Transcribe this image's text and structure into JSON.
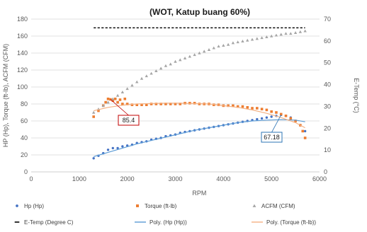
{
  "chart_data": {
    "type": "scatter",
    "title": "(WOT, Katup buang 60%)",
    "xlabel": "RPM",
    "ylabel": "HP (Hp), Torque (ft-lb), ACFM (CFM)",
    "y2label": "E-Temp (°C)",
    "xlim": [
      0,
      6000
    ],
    "ylim": [
      0,
      180
    ],
    "y2lim": [
      0,
      70
    ],
    "x_ticks": [
      0,
      1000,
      2000,
      3000,
      4000,
      5000,
      6000
    ],
    "y_ticks": [
      0,
      20,
      40,
      60,
      80,
      100,
      120,
      140,
      160,
      180
    ],
    "y2_ticks": [
      0,
      10,
      20,
      30,
      40,
      50,
      60,
      70
    ],
    "grid": "horizontal",
    "legend_position": "bottom",
    "colors": {
      "hp": "#4472C4",
      "torque": "#ED7D31",
      "acfm": "#A5A5A5",
      "etemp": "#000000",
      "poly_hp": "#5B9BD5",
      "poly_torque": "#F4B183",
      "ann_torque_border": "#C00000",
      "ann_hp_border": "#2E75B6"
    },
    "series": [
      {
        "name": "Hp (Hp)",
        "marker": "circle",
        "axis": "left",
        "x": [
          1300,
          1400,
          1500,
          1600,
          1700,
          1800,
          1900,
          2000,
          2100,
          2200,
          2300,
          2400,
          2500,
          2600,
          2700,
          2800,
          2900,
          3000,
          3100,
          3200,
          3300,
          3400,
          3500,
          3600,
          3700,
          3800,
          3900,
          4000,
          4100,
          4200,
          4300,
          4400,
          4500,
          4600,
          4700,
          4800,
          4900,
          5000,
          5100,
          5200,
          5300,
          5400,
          5500,
          5600,
          5700
        ],
        "y": [
          16,
          19,
          22,
          26,
          28,
          28,
          30,
          31,
          32,
          34,
          35,
          36,
          38,
          39,
          40,
          42,
          43,
          44,
          46,
          47,
          48,
          49,
          50,
          51,
          52,
          53,
          54,
          55,
          56,
          57,
          58,
          59,
          60,
          61,
          62,
          63,
          64,
          65,
          66,
          67.18,
          66,
          64,
          60,
          55,
          48
        ]
      },
      {
        "name": "Torque (ft-lb)",
        "marker": "square",
        "axis": "left",
        "x": [
          1300,
          1400,
          1500,
          1550,
          1600,
          1650,
          1700,
          1750,
          1800,
          1850,
          1900,
          1950,
          2000,
          2100,
          2200,
          2300,
          2400,
          2500,
          2600,
          2700,
          2800,
          2900,
          3000,
          3100,
          3200,
          3300,
          3400,
          3500,
          3600,
          3700,
          3800,
          3900,
          4000,
          4100,
          4200,
          4300,
          4400,
          4500,
          4600,
          4700,
          4800,
          4900,
          5000,
          5100,
          5200,
          5300,
          5400,
          5500,
          5600,
          5650,
          5700
        ],
        "y": [
          65,
          72,
          78,
          82,
          86,
          85.4,
          84,
          86,
          82,
          85,
          80,
          86,
          80,
          79,
          79,
          79,
          79,
          80,
          80,
          80,
          80,
          80,
          80,
          80,
          81,
          81,
          81,
          80,
          80,
          80,
          79,
          79,
          78,
          78,
          78,
          77,
          77,
          76,
          75,
          75,
          74,
          73,
          71,
          70,
          68,
          66,
          63,
          60,
          55,
          48,
          40
        ]
      },
      {
        "name": "ACFM (CFM)",
        "marker": "triangle",
        "axis": "left",
        "x": [
          1300,
          1400,
          1500,
          1600,
          1700,
          1800,
          1900,
          2000,
          2100,
          2200,
          2300,
          2400,
          2500,
          2600,
          2700,
          2800,
          2900,
          3000,
          3100,
          3200,
          3300,
          3400,
          3500,
          3600,
          3700,
          3800,
          3900,
          4000,
          4100,
          4200,
          4300,
          4400,
          4500,
          4600,
          4700,
          4800,
          4900,
          5000,
          5100,
          5200,
          5300,
          5400,
          5500,
          5600,
          5700
        ],
        "y": [
          70,
          74,
          78,
          82,
          86,
          90,
          94,
          98,
          102,
          106,
          110,
          113,
          116,
          119,
          122,
          125,
          127,
          130,
          132,
          134,
          136,
          138,
          140,
          142,
          144,
          146,
          148,
          149,
          150,
          152,
          153,
          154,
          155,
          156,
          157,
          158,
          159,
          160,
          161,
          162,
          163,
          163,
          164,
          165,
          166
        ]
      },
      {
        "name": "E-Temp (Degree C)",
        "marker": "dash",
        "axis": "right",
        "x": [
          1300,
          1600,
          1900,
          2200,
          2500,
          2800,
          3100,
          3400,
          3700,
          4000,
          4300,
          4600,
          4900,
          5200,
          5500,
          5700
        ],
        "y": [
          66,
          66,
          66,
          66,
          66,
          66,
          66,
          66,
          66,
          66,
          66,
          66,
          66,
          66,
          66,
          66
        ]
      },
      {
        "name": "Poly. (Hp (Hp))",
        "style": "line",
        "axis": "left",
        "x": [
          1300,
          1600,
          1900,
          2200,
          2500,
          2800,
          3100,
          3400,
          3700,
          4000,
          4300,
          4600,
          4900,
          5200,
          5500,
          5700
        ],
        "y": [
          18,
          23,
          28,
          33,
          37,
          41,
          45,
          49,
          52,
          55,
          58,
          60,
          61,
          61.5,
          61,
          59
        ]
      },
      {
        "name": "Poly. (Torque (ft-lb))",
        "style": "line",
        "axis": "left",
        "x": [
          1300,
          1600,
          1900,
          2200,
          2500,
          2800,
          3100,
          3400,
          3700,
          4000,
          4300,
          4600,
          4900,
          5200,
          5500,
          5700
        ],
        "y": [
          72,
          76,
          78.5,
          80,
          80.5,
          81,
          81,
          80.5,
          80,
          78,
          76,
          73,
          69,
          64,
          58,
          52
        ]
      }
    ],
    "annotations": [
      {
        "text": "85.4",
        "x": 1650,
        "y": 85.4,
        "series": "Torque (ft-lb)"
      },
      {
        "text": "67.18",
        "x": 5200,
        "y": 67.18,
        "series": "Hp (Hp)"
      }
    ]
  }
}
